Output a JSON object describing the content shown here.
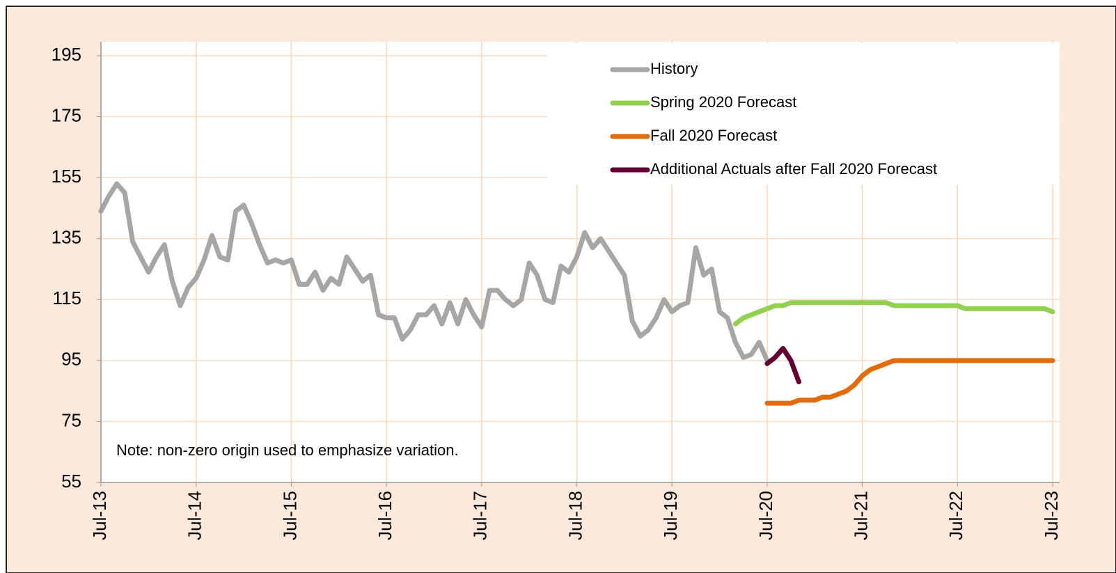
{
  "chart_data": {
    "type": "line",
    "annotation": "Note: non-zero origin used to emphasize variation.",
    "categories": [
      "Jul-13",
      null,
      null,
      null,
      null,
      null,
      null,
      null,
      null,
      null,
      null,
      null,
      "Jul-14",
      null,
      null,
      null,
      null,
      null,
      null,
      null,
      null,
      null,
      null,
      null,
      "Jul-15",
      null,
      null,
      null,
      null,
      null,
      null,
      null,
      null,
      null,
      null,
      null,
      "Jul-16",
      null,
      null,
      null,
      null,
      null,
      null,
      null,
      null,
      null,
      null,
      null,
      "Jul-17",
      null,
      null,
      null,
      null,
      null,
      null,
      null,
      null,
      null,
      null,
      null,
      "Jul-18",
      null,
      null,
      null,
      null,
      null,
      null,
      null,
      null,
      null,
      null,
      null,
      "Jul-19",
      null,
      null,
      null,
      null,
      null,
      null,
      null,
      null,
      null,
      null,
      null,
      "Jul-20",
      null,
      null,
      null,
      null,
      null,
      null,
      null,
      null,
      null,
      null,
      null,
      "Jul-21",
      null,
      null,
      null,
      null,
      null,
      null,
      null,
      null,
      null,
      null,
      null,
      "Jul-22",
      null,
      null,
      null,
      null,
      null,
      null,
      null,
      null,
      null,
      null,
      null,
      "Jul-23"
    ],
    "series": [
      {
        "name": "History",
        "color": "#a6a6a6",
        "values": [
          144,
          149,
          153,
          150,
          134,
          129,
          124,
          129,
          133,
          121,
          113,
          119,
          122,
          128,
          136,
          129,
          128,
          144,
          146,
          140,
          133,
          127,
          128,
          127,
          128,
          120,
          120,
          124,
          118,
          122,
          120,
          129,
          125,
          121,
          123,
          110,
          109,
          109,
          102,
          105,
          110,
          110,
          113,
          107,
          114,
          107,
          115,
          110,
          106,
          118,
          118,
          115,
          113,
          115,
          127,
          123,
          115,
          114,
          126,
          124,
          129,
          137,
          132,
          135,
          131,
          127,
          123,
          108,
          103,
          105,
          109,
          115,
          111,
          113,
          114,
          132,
          123,
          125,
          111,
          109,
          101,
          96,
          97,
          101,
          95,
          null,
          null,
          null,
          null,
          null,
          null,
          null,
          null,
          null,
          null,
          null,
          null,
          null,
          null,
          null,
          null,
          null,
          null,
          null,
          null,
          null,
          null,
          null,
          null,
          null,
          null,
          null,
          null,
          null,
          null,
          null,
          null,
          null,
          null,
          null,
          null
        ]
      },
      {
        "name": "Spring 2020 Forecast",
        "color": "#92d050",
        "values": [
          null,
          null,
          null,
          null,
          null,
          null,
          null,
          null,
          null,
          null,
          null,
          null,
          null,
          null,
          null,
          null,
          null,
          null,
          null,
          null,
          null,
          null,
          null,
          null,
          null,
          null,
          null,
          null,
          null,
          null,
          null,
          null,
          null,
          null,
          null,
          null,
          null,
          null,
          null,
          null,
          null,
          null,
          null,
          null,
          null,
          null,
          null,
          null,
          null,
          null,
          null,
          null,
          null,
          null,
          null,
          null,
          null,
          null,
          null,
          null,
          null,
          null,
          null,
          null,
          null,
          null,
          null,
          null,
          null,
          null,
          null,
          null,
          null,
          null,
          null,
          null,
          null,
          null,
          null,
          null,
          107,
          109,
          110,
          111,
          112,
          113,
          113,
          114,
          114,
          114,
          114,
          114,
          114,
          114,
          114,
          114,
          114,
          114,
          114,
          114,
          113,
          113,
          113,
          113,
          113,
          113,
          113,
          113,
          113,
          112,
          112,
          112,
          112,
          112,
          112,
          112,
          112,
          112,
          112,
          112,
          111
        ]
      },
      {
        "name": "Fall 2020 Forecast",
        "color": "#e36c09",
        "values": [
          null,
          null,
          null,
          null,
          null,
          null,
          null,
          null,
          null,
          null,
          null,
          null,
          null,
          null,
          null,
          null,
          null,
          null,
          null,
          null,
          null,
          null,
          null,
          null,
          null,
          null,
          null,
          null,
          null,
          null,
          null,
          null,
          null,
          null,
          null,
          null,
          null,
          null,
          null,
          null,
          null,
          null,
          null,
          null,
          null,
          null,
          null,
          null,
          null,
          null,
          null,
          null,
          null,
          null,
          null,
          null,
          null,
          null,
          null,
          null,
          null,
          null,
          null,
          null,
          null,
          null,
          null,
          null,
          null,
          null,
          null,
          null,
          null,
          null,
          null,
          null,
          null,
          null,
          null,
          null,
          null,
          null,
          null,
          null,
          81,
          81,
          81,
          81,
          82,
          82,
          82,
          83,
          83,
          84,
          85,
          87,
          90,
          92,
          93,
          94,
          95,
          95,
          95,
          95,
          95,
          95,
          95,
          95,
          95,
          95,
          95,
          95,
          95,
          95,
          95,
          95,
          95,
          95,
          95,
          95,
          95
        ]
      },
      {
        "name": "Additional Actuals after Fall 2020 Forecast",
        "color": "#660033",
        "values": [
          null,
          null,
          null,
          null,
          null,
          null,
          null,
          null,
          null,
          null,
          null,
          null,
          null,
          null,
          null,
          null,
          null,
          null,
          null,
          null,
          null,
          null,
          null,
          null,
          null,
          null,
          null,
          null,
          null,
          null,
          null,
          null,
          null,
          null,
          null,
          null,
          null,
          null,
          null,
          null,
          null,
          null,
          null,
          null,
          null,
          null,
          null,
          null,
          null,
          null,
          null,
          null,
          null,
          null,
          null,
          null,
          null,
          null,
          null,
          null,
          null,
          null,
          null,
          null,
          null,
          null,
          null,
          null,
          null,
          null,
          null,
          null,
          null,
          null,
          null,
          null,
          null,
          null,
          null,
          null,
          null,
          null,
          null,
          null,
          94,
          96,
          99,
          95,
          88,
          null,
          null,
          null,
          null,
          null,
          null,
          null,
          null,
          null,
          null,
          null,
          null,
          null,
          null,
          null,
          null,
          null,
          null,
          null,
          null,
          null,
          null,
          null,
          null,
          null,
          null,
          null,
          null,
          null,
          null,
          null,
          null
        ]
      }
    ],
    "ylim": [
      55,
      195
    ],
    "yticks": [
      55,
      75,
      95,
      115,
      135,
      155,
      175,
      195
    ],
    "grid": true,
    "legend": "upper right"
  }
}
